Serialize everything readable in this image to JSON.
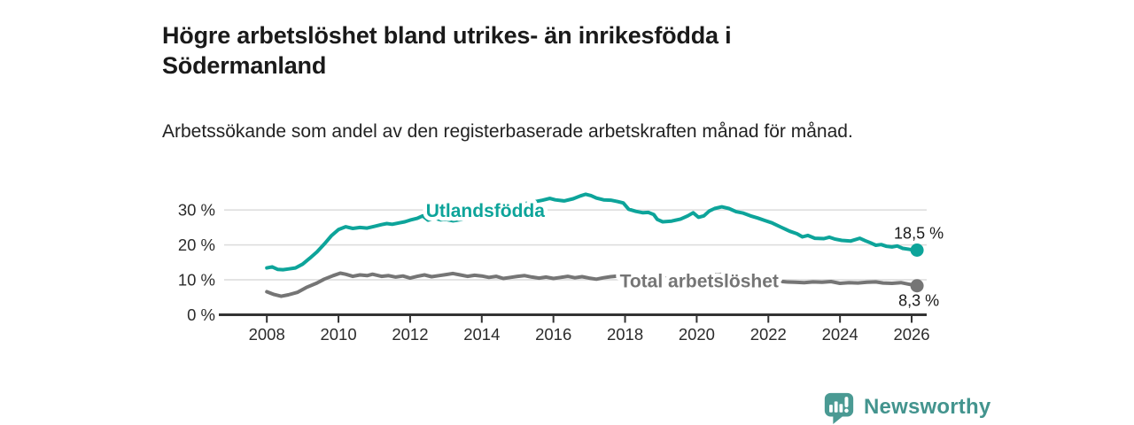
{
  "header": {
    "title": "Högre arbetslöshet bland utrikes- än inrikesfödda i Södermanland",
    "subtitle": "Arbetssökande som andel av den registerbaserade arbetskraften månad för månad."
  },
  "branding": {
    "logo_text": "Newsworthy",
    "logo_icon": "bar-chart-speech-bubble-icon",
    "brand_color": "#43948e"
  },
  "colors": {
    "foreign_born_line": "#0da49a",
    "total_line": "#757575",
    "axis": "#333333",
    "gridline": "#dcdcdc",
    "tick_text": "#2b2b2b",
    "value_label_text": "#1a1a1a"
  },
  "chart_data": {
    "type": "line",
    "title": "Högre arbetslöshet bland utrikes- än inrikesfödda i Södermanland",
    "subtitle": "Arbetssökande som andel av den registerbaserade arbetskraften månad för månad.",
    "grid": true,
    "x_axis": {
      "range": [
        2006.66,
        2026.42
      ],
      "ticks": [
        2008,
        2010,
        2012,
        2014,
        2016,
        2018,
        2020,
        2022,
        2024,
        2026
      ],
      "tick_labels": [
        "2008",
        "2010",
        "2012",
        "2014",
        "2016",
        "2018",
        "2020",
        "2022",
        "2024",
        "2026"
      ]
    },
    "y_axis": {
      "range": [
        0,
        37
      ],
      "unit": "%",
      "ticks": [
        0,
        10,
        20,
        30
      ],
      "tick_labels": [
        "0 %",
        "10 %",
        "20 %",
        "30 %"
      ]
    },
    "series": [
      {
        "name": "Utlandsfödda",
        "color": "#0da49a",
        "end_value": 18.5,
        "end_label": "18,5 %",
        "end_label_position": "above",
        "points": [
          [
            2008.0,
            13.4
          ],
          [
            2008.15,
            13.7
          ],
          [
            2008.3,
            13.0
          ],
          [
            2008.45,
            12.9
          ],
          [
            2008.6,
            13.1
          ],
          [
            2008.8,
            13.4
          ],
          [
            2009.0,
            14.5
          ],
          [
            2009.2,
            16.2
          ],
          [
            2009.4,
            18.0
          ],
          [
            2009.6,
            20.2
          ],
          [
            2009.8,
            22.6
          ],
          [
            2010.0,
            24.4
          ],
          [
            2010.2,
            25.2
          ],
          [
            2010.4,
            24.7
          ],
          [
            2010.6,
            25.0
          ],
          [
            2010.8,
            24.8
          ],
          [
            2011.0,
            25.3
          ],
          [
            2011.2,
            25.8
          ],
          [
            2011.35,
            26.1
          ],
          [
            2011.5,
            25.9
          ],
          [
            2011.7,
            26.3
          ],
          [
            2011.85,
            26.6
          ],
          [
            2012.0,
            27.1
          ],
          [
            2012.2,
            27.6
          ],
          [
            2012.35,
            28.3
          ],
          [
            2012.5,
            27.1
          ],
          [
            2012.7,
            27.6
          ],
          [
            2012.85,
            27.2
          ],
          [
            2013.0,
            27.3
          ],
          [
            2013.2,
            26.9
          ],
          [
            2013.5,
            27.4
          ],
          [
            2013.75,
            28.0
          ],
          [
            2014.0,
            28.8
          ],
          [
            2014.3,
            29.6
          ],
          [
            2014.6,
            30.4
          ],
          [
            2014.9,
            31.1
          ],
          [
            2015.2,
            31.8
          ],
          [
            2015.5,
            32.4
          ],
          [
            2015.7,
            32.8
          ],
          [
            2015.9,
            33.3
          ],
          [
            2016.05,
            32.9
          ],
          [
            2016.3,
            32.6
          ],
          [
            2016.55,
            33.2
          ],
          [
            2016.75,
            34.0
          ],
          [
            2016.9,
            34.5
          ],
          [
            2017.05,
            34.1
          ],
          [
            2017.2,
            33.4
          ],
          [
            2017.4,
            32.9
          ],
          [
            2017.6,
            32.8
          ],
          [
            2017.8,
            32.4
          ],
          [
            2017.95,
            32.0
          ],
          [
            2018.1,
            30.2
          ],
          [
            2018.3,
            29.6
          ],
          [
            2018.5,
            29.2
          ],
          [
            2018.65,
            29.3
          ],
          [
            2018.8,
            28.7
          ],
          [
            2018.9,
            27.3
          ],
          [
            2019.05,
            26.6
          ],
          [
            2019.3,
            26.8
          ],
          [
            2019.55,
            27.4
          ],
          [
            2019.75,
            28.3
          ],
          [
            2019.9,
            29.2
          ],
          [
            2020.05,
            27.9
          ],
          [
            2020.2,
            28.3
          ],
          [
            2020.35,
            29.7
          ],
          [
            2020.5,
            30.4
          ],
          [
            2020.7,
            30.9
          ],
          [
            2020.9,
            30.4
          ],
          [
            2021.1,
            29.5
          ],
          [
            2021.3,
            29.1
          ],
          [
            2021.5,
            28.3
          ],
          [
            2021.7,
            27.7
          ],
          [
            2021.9,
            27.0
          ],
          [
            2022.1,
            26.3
          ],
          [
            2022.35,
            25.1
          ],
          [
            2022.6,
            23.9
          ],
          [
            2022.8,
            23.2
          ],
          [
            2022.95,
            22.3
          ],
          [
            2023.1,
            22.7
          ],
          [
            2023.3,
            21.9
          ],
          [
            2023.55,
            21.8
          ],
          [
            2023.7,
            22.2
          ],
          [
            2023.85,
            21.7
          ],
          [
            2024.05,
            21.3
          ],
          [
            2024.3,
            21.1
          ],
          [
            2024.55,
            21.9
          ],
          [
            2024.7,
            21.2
          ],
          [
            2024.85,
            20.6
          ],
          [
            2025.0,
            19.9
          ],
          [
            2025.15,
            20.1
          ],
          [
            2025.3,
            19.6
          ],
          [
            2025.45,
            19.4
          ],
          [
            2025.6,
            19.7
          ],
          [
            2025.75,
            19.0
          ],
          [
            2025.95,
            18.7
          ],
          [
            2026.15,
            18.5
          ]
        ]
      },
      {
        "name": "Total arbetslöshet",
        "color": "#757575",
        "end_value": 8.3,
        "end_label": "8,3 %",
        "end_label_position": "below",
        "points": [
          [
            2008.0,
            6.6
          ],
          [
            2008.2,
            5.8
          ],
          [
            2008.4,
            5.3
          ],
          [
            2008.6,
            5.7
          ],
          [
            2008.85,
            6.4
          ],
          [
            2009.1,
            7.8
          ],
          [
            2009.4,
            9.1
          ],
          [
            2009.6,
            10.2
          ],
          [
            2009.85,
            11.2
          ],
          [
            2010.05,
            11.9
          ],
          [
            2010.2,
            11.6
          ],
          [
            2010.4,
            11.0
          ],
          [
            2010.6,
            11.4
          ],
          [
            2010.8,
            11.2
          ],
          [
            2010.95,
            11.6
          ],
          [
            2011.2,
            11.0
          ],
          [
            2011.4,
            11.2
          ],
          [
            2011.6,
            10.8
          ],
          [
            2011.8,
            11.1
          ],
          [
            2012.0,
            10.5
          ],
          [
            2012.2,
            11.0
          ],
          [
            2012.4,
            11.4
          ],
          [
            2012.6,
            10.9
          ],
          [
            2012.8,
            11.2
          ],
          [
            2013.0,
            11.5
          ],
          [
            2013.2,
            11.8
          ],
          [
            2013.4,
            11.4
          ],
          [
            2013.6,
            11.0
          ],
          [
            2013.8,
            11.3
          ],
          [
            2014.0,
            11.1
          ],
          [
            2014.2,
            10.7
          ],
          [
            2014.4,
            11.0
          ],
          [
            2014.6,
            10.4
          ],
          [
            2014.8,
            10.7
          ],
          [
            2015.0,
            11.0
          ],
          [
            2015.2,
            11.2
          ],
          [
            2015.4,
            10.8
          ],
          [
            2015.6,
            10.5
          ],
          [
            2015.8,
            10.8
          ],
          [
            2016.0,
            10.4
          ],
          [
            2016.2,
            10.7
          ],
          [
            2016.4,
            11.0
          ],
          [
            2016.6,
            10.6
          ],
          [
            2016.8,
            10.9
          ],
          [
            2017.0,
            10.5
          ],
          [
            2017.2,
            10.2
          ],
          [
            2017.4,
            10.6
          ],
          [
            2017.6,
            10.9
          ],
          [
            2017.8,
            11.1
          ],
          [
            2018.0,
            10.8
          ],
          [
            2018.3,
            11.1
          ],
          [
            2018.6,
            10.7
          ],
          [
            2018.9,
            10.9
          ],
          [
            2019.2,
            10.4
          ],
          [
            2019.5,
            10.2
          ],
          [
            2019.8,
            10.0
          ],
          [
            2020.1,
            10.4
          ],
          [
            2020.4,
            11.3
          ],
          [
            2020.7,
            11.6
          ],
          [
            2021.0,
            11.2
          ],
          [
            2021.3,
            10.8
          ],
          [
            2021.6,
            10.4
          ],
          [
            2021.9,
            10.0
          ],
          [
            2022.2,
            9.7
          ],
          [
            2022.5,
            9.4
          ],
          [
            2022.75,
            9.3
          ],
          [
            2023.0,
            9.2
          ],
          [
            2023.25,
            9.4
          ],
          [
            2023.5,
            9.3
          ],
          [
            2023.75,
            9.5
          ],
          [
            2024.0,
            9.0
          ],
          [
            2024.25,
            9.2
          ],
          [
            2024.5,
            9.1
          ],
          [
            2024.75,
            9.3
          ],
          [
            2025.0,
            9.4
          ],
          [
            2025.2,
            9.1
          ],
          [
            2025.45,
            9.0
          ],
          [
            2025.7,
            9.2
          ],
          [
            2025.9,
            8.8
          ],
          [
            2026.15,
            8.3
          ]
        ]
      }
    ],
    "annotations": [
      {
        "text": "Utlandsfödda",
        "x": 2014.1,
        "y": 29.8,
        "color": "#0da49a"
      },
      {
        "text": "Total arbetslöshet",
        "x": 2020.07,
        "y": 9.6,
        "color": "#757575"
      }
    ]
  }
}
